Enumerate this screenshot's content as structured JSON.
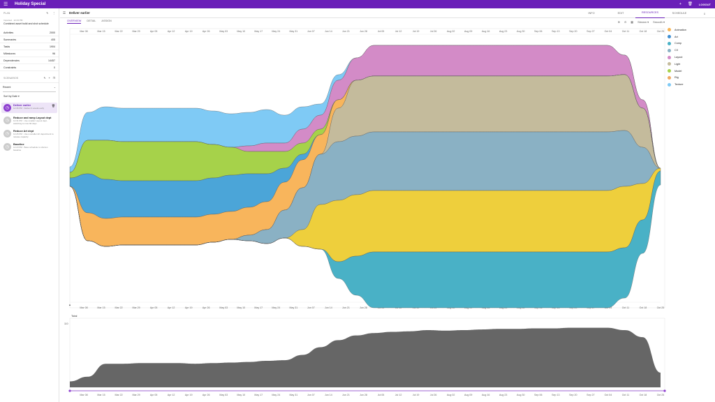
{
  "app": {
    "title": "Holiday Special",
    "logout": "LOGOUT"
  },
  "plan": {
    "section": "PLAN",
    "imported": "Imported · 12:23 PM",
    "name": "Combined asset build and shot schedule",
    "stats": [
      {
        "label": "Activities",
        "value": "2000"
      },
      {
        "label": "Summaries",
        "value": "405"
      },
      {
        "label": "Tasks",
        "value": "1904"
      },
      {
        "label": "Milestones",
        "value": "96"
      },
      {
        "label": "Dependencies",
        "value": "14457"
      },
      {
        "label": "Constraints",
        "value": "0"
      }
    ]
  },
  "scenarios": {
    "section": "SCENARIOS",
    "filter": "Recent",
    "sort": "Sort by Date ▾",
    "items": [
      {
        "name": "Deliver earlier",
        "time": "12:36 PM",
        "desc": "Deliver 4 weeks early",
        "active": true
      },
      {
        "name": "Reduce and ramp Layout dept",
        "time": "12:31 PM",
        "desc": "Use smaller Layout dept, switching to max 90 days",
        "active": false
      },
      {
        "name": "Reduce Art dept",
        "time": "12:26 PM",
        "desc": "Use a smaller Art department to release capacity",
        "active": false
      },
      {
        "name": "Baseline",
        "time": "12:23 PM",
        "desc": "Base schedule to shorten baseline",
        "active": false
      }
    ]
  },
  "main": {
    "title": "Deliver earlier",
    "tabs": [
      "INFO",
      "EDIT",
      "RESOURCES",
      "SCHEDULE"
    ],
    "selected_tab": "RESOURCES",
    "subtabs": [
      "OVERVIEW",
      "DETAIL",
      "ASSIGN"
    ],
    "selected_subtab": "OVERVIEW",
    "view_mode": "Stream ▾",
    "smooth": "Smooth ▾"
  },
  "chart_data": [
    {
      "type": "area",
      "mode": "streamgraph",
      "x_labels": [
        "Mar 08",
        "Mar 15",
        "Mar 22",
        "Mar 29",
        "Apr 05",
        "Apr 12",
        "Apr 19",
        "Apr 26",
        "May 03",
        "May 10",
        "May 17",
        "May 24",
        "May 31",
        "Jun 07",
        "Jun 14",
        "Jun 21",
        "Jun 28",
        "Jul 05",
        "Jul 12",
        "Jul 19",
        "Jul 26",
        "Aug 02",
        "Aug 09",
        "Aug 16",
        "Aug 23",
        "Aug 30",
        "Sep 06",
        "Sep 13",
        "Sep 20",
        "Sep 27",
        "Oct 04",
        "Oct 11",
        "Oct 18",
        "Oct 25"
      ],
      "series": [
        {
          "name": "Texture",
          "color": "#7fcaf5",
          "values": [
            2,
            10,
            12,
            12,
            12,
            12,
            12,
            12,
            12,
            12,
            12,
            12,
            10,
            8,
            4,
            2,
            0,
            0,
            0,
            0,
            0,
            0,
            0,
            0,
            0,
            0,
            0,
            0,
            0,
            0,
            0,
            0,
            0,
            0
          ]
        },
        {
          "name": "Layout",
          "color": "#d38bc7",
          "values": [
            0,
            0,
            0,
            0,
            0,
            0,
            0,
            0,
            0,
            0,
            2,
            3,
            3,
            5,
            5,
            7,
            8,
            11,
            11,
            11,
            11,
            11,
            11,
            11,
            11,
            11,
            11,
            11,
            11,
            11,
            11,
            7,
            3,
            0
          ]
        },
        {
          "name": "Model",
          "color": "#a6d24a",
          "values": [
            2,
            12,
            14,
            14,
            14,
            14,
            14,
            14,
            12,
            10,
            8,
            8,
            6,
            4,
            2,
            0,
            0,
            0,
            0,
            0,
            0,
            0,
            0,
            0,
            0,
            0,
            0,
            0,
            0,
            0,
            0,
            0,
            0,
            0
          ]
        },
        {
          "name": "CX",
          "color": "#4ba5d8",
          "values": [
            3,
            14,
            14,
            13,
            13,
            13,
            13,
            13,
            13,
            13,
            12,
            10,
            5,
            2,
            0,
            0,
            0,
            0,
            0,
            0,
            0,
            0,
            0,
            0,
            0,
            0,
            0,
            0,
            0,
            0,
            0,
            0,
            0,
            0
          ]
        },
        {
          "name": "Rig",
          "color": "#f8b55c",
          "values": [
            0,
            10,
            10,
            10,
            10,
            10,
            10,
            10,
            10,
            10,
            10,
            10,
            10,
            10,
            7,
            3,
            0,
            0,
            0,
            0,
            0,
            0,
            0,
            0,
            0,
            0,
            0,
            0,
            0,
            0,
            0,
            0,
            0,
            0
          ]
        },
        {
          "name": "Light",
          "color": "#c4bb9c",
          "values": [
            0,
            0,
            0,
            0,
            0,
            0,
            0,
            0,
            0,
            0,
            0,
            0,
            0,
            0,
            0,
            12,
            20,
            20,
            20,
            20,
            20,
            20,
            20,
            20,
            20,
            20,
            20,
            20,
            20,
            20,
            20,
            20,
            14,
            0
          ]
        },
        {
          "name": "Art",
          "color": "#8ab1c4",
          "values": [
            0,
            0,
            0,
            0,
            0,
            0,
            0,
            0,
            0,
            0,
            2,
            5,
            10,
            15,
            18,
            21,
            21,
            21,
            21,
            21,
            21,
            21,
            21,
            21,
            21,
            21,
            21,
            21,
            21,
            21,
            21,
            20,
            13,
            0
          ]
        },
        {
          "name": "Comp",
          "color": "#eecf3c",
          "values": [
            0,
            0,
            0,
            0,
            0,
            0,
            0,
            0,
            0,
            0,
            0,
            0,
            0,
            6,
            16,
            22,
            22,
            22,
            22,
            22,
            22,
            22,
            22,
            22,
            22,
            22,
            22,
            22,
            22,
            22,
            22,
            22,
            13,
            1
          ]
        },
        {
          "name": "Animation",
          "color": "#49b1c6",
          "values": [
            0,
            0,
            0,
            0,
            0,
            0,
            0,
            0,
            0,
            0,
            0,
            0,
            0,
            0,
            0,
            6,
            14,
            20,
            20,
            20,
            20,
            20,
            20,
            20,
            20,
            20,
            20,
            20,
            20,
            20,
            20,
            18,
            12,
            5
          ]
        }
      ]
    },
    {
      "type": "area",
      "title": "Total",
      "x_labels": [
        "Mar 08",
        "Mar 15",
        "Mar 22",
        "Mar 29",
        "Apr 05",
        "Apr 12",
        "Apr 19",
        "Apr 26",
        "May 03",
        "May 10",
        "May 17",
        "May 24",
        "May 31",
        "Jun 07",
        "Jun 14",
        "Jun 21",
        "Jun 28",
        "Jul 05",
        "Jul 12",
        "Jul 19",
        "Jul 26",
        "Aug 02",
        "Aug 09",
        "Aug 16",
        "Aug 23",
        "Aug 30",
        "Sep 06",
        "Sep 13",
        "Sep 20",
        "Sep 27",
        "Oct 04",
        "Oct 11",
        "Oct 18",
        "Oct 25"
      ],
      "y_max_label": "110",
      "ylim": [
        0,
        110
      ],
      "series": [
        {
          "name": "Total",
          "color": "#666666",
          "values": [
            10,
            18,
            40,
            40,
            41,
            41,
            41,
            40,
            41,
            42,
            43,
            45,
            46,
            55,
            68,
            80,
            88,
            92,
            94,
            95,
            97,
            96,
            97,
            98,
            99,
            99,
            100,
            100,
            101,
            101,
            101,
            97,
            85,
            25
          ]
        }
      ]
    }
  ]
}
